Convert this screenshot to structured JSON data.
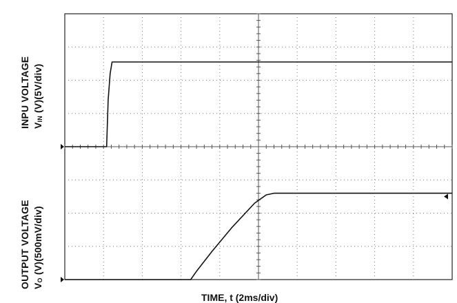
{
  "chart_data": {
    "type": "line",
    "xlabel": "TIME, t (2ms/div)",
    "x_divisions": 10,
    "panels": [
      {
        "ylabel_line1": "INPU VOLTAGE",
        "ylabel_line2_pre": "V",
        "ylabel_line2_sub": "IN",
        "ylabel_line2_post": " (V)(5V/div)",
        "y_divisions": 4,
        "series": {
          "x": [
            0,
            1.08,
            1.12,
            1.17,
            1.22,
            1.3,
            10
          ],
          "y": [
            0,
            0,
            1.4,
            2.2,
            2.55,
            2.55,
            2.55
          ]
        }
      },
      {
        "ylabel_line1": "OUTPUT VOLTAGE",
        "ylabel_line2_pre": "V",
        "ylabel_line2_sub": "O",
        "ylabel_line2_post": " (V)(500mV/div)",
        "y_divisions": 4,
        "series": {
          "x": [
            0,
            3.25,
            3.4,
            3.8,
            4.3,
            4.9,
            5.2,
            5.4,
            10
          ],
          "y": [
            0,
            0,
            0.25,
            0.85,
            1.55,
            2.3,
            2.55,
            2.6,
            2.6
          ]
        }
      }
    ]
  }
}
